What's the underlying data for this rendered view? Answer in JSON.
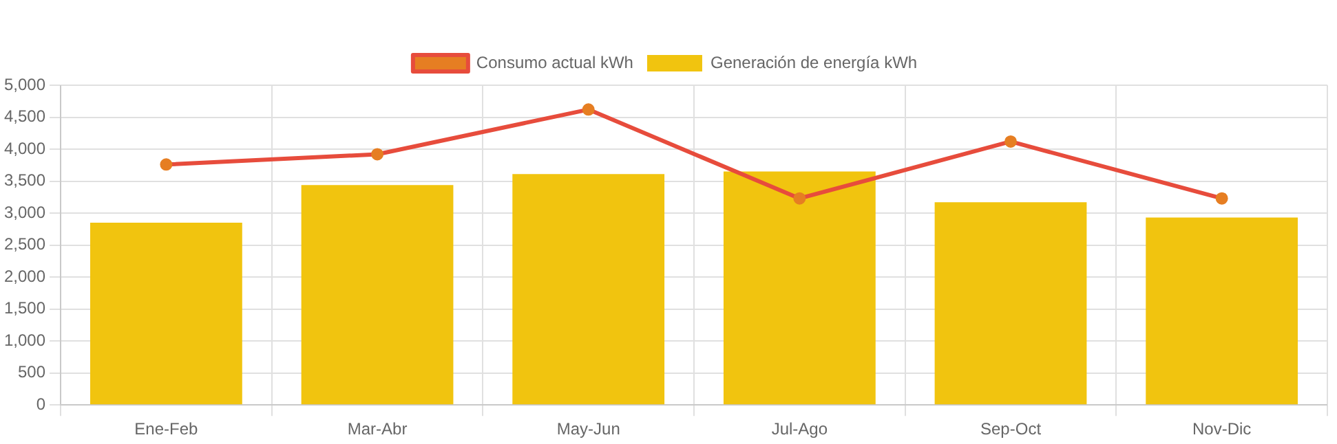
{
  "chart_data": {
    "type": "bar",
    "categories": [
      "Ene-Feb",
      "Mar-Abr",
      "May-Jun",
      "Jul-Ago",
      "Sep-Oct",
      "Nov-Dic"
    ],
    "series": [
      {
        "name": "Consumo actual kWh",
        "type": "line",
        "color": "#e74c3c",
        "values": [
          3760,
          3920,
          4620,
          3230,
          4120,
          3230
        ]
      },
      {
        "name": "Generación de energía kWh",
        "color": "#f1c40f",
        "values": [
          2850,
          3440,
          3610,
          3650,
          3170,
          2930
        ]
      }
    ],
    "ylim": [
      0,
      5000
    ],
    "yticks": [
      0,
      500,
      {
        "value": 1000,
        "label": "1,000"
      },
      {
        "value": 1500,
        "label": "1,500"
      },
      {
        "value": 2000,
        "label": "2,000"
      },
      {
        "value": 2500,
        "label": "2,500"
      },
      {
        "value": 3000,
        "label": "3,000"
      },
      {
        "value": 3500,
        "label": "3,500"
      },
      {
        "value": 4000,
        "label": "4,000"
      },
      {
        "value": 4500,
        "label": "4,500"
      },
      {
        "value": 5000,
        "label": "5,000"
      }
    ],
    "grid": true,
    "legend": "top",
    "marker": "circle",
    "line_style": "solid"
  }
}
